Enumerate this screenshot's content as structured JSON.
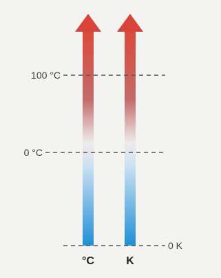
{
  "levels": [
    {
      "label": "100 °C"
    },
    {
      "label": "0 °C"
    },
    {
      "label": "0 K"
    }
  ],
  "columns": [
    {
      "label": "°C"
    },
    {
      "label": "K"
    }
  ],
  "colors": {
    "hot": "#d94a3a",
    "mid": "#f0ece8",
    "cold": "#1f8fd6",
    "dash": "#555555"
  }
}
